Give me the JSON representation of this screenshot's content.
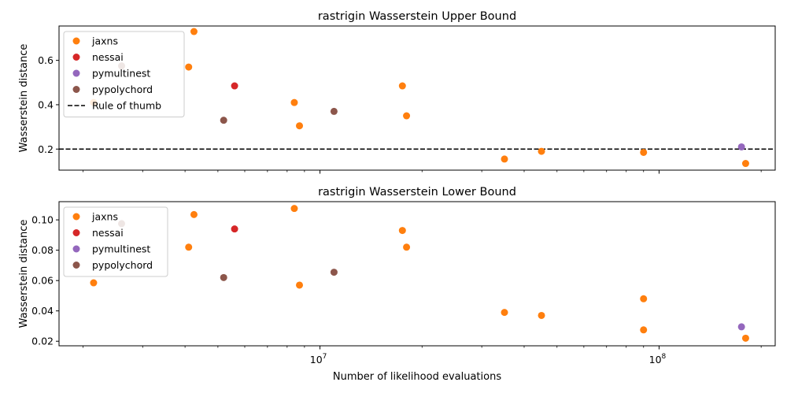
{
  "figure": {
    "xlabel": "Number of likelihood evaluations",
    "xscale": "log",
    "xlim": [
      1700000.0,
      220000000.0
    ],
    "major_ticks": [
      {
        "value": 10000000.0,
        "base": "10",
        "exp": "7"
      },
      {
        "value": 100000000.0,
        "base": "10",
        "exp": "8"
      }
    ],
    "colors": {
      "jaxns": "#ff7f0e",
      "nessai": "#d62728",
      "pymultinest": "#9467bd",
      "pypolychord": "#8c564b",
      "rule": "#000000"
    }
  },
  "chart_data": [
    {
      "type": "scatter",
      "title": "rastrigin Wasserstein Upper Bound",
      "ylabel": "Wasserstein distance",
      "ylim": [
        0.105,
        0.755
      ],
      "yticks": [
        0.2,
        0.4,
        0.6
      ],
      "ytick_labels": [
        "0.2",
        "0.4",
        "0.6"
      ],
      "grid": false,
      "legend_position": "upper-left",
      "reference_line": {
        "label": "Rule of thumb",
        "y": 0.2,
        "style": "dashed"
      },
      "series": [
        {
          "name": "jaxns",
          "color": "#ff7f0e",
          "points": [
            [
              2150000.0,
              0.41
            ],
            [
              4100000.0,
              0.57
            ],
            [
              4250000.0,
              0.73
            ],
            [
              8400000.0,
              0.41
            ],
            [
              8700000.0,
              0.305
            ],
            [
              17500000.0,
              0.485
            ],
            [
              18000000.0,
              0.35
            ],
            [
              35000000.0,
              0.155
            ],
            [
              45000000.0,
              0.19
            ],
            [
              90000000.0,
              0.185
            ],
            [
              180000000.0,
              0.135
            ]
          ]
        },
        {
          "name": "nessai",
          "color": "#d62728",
          "points": [
            [
              5600000.0,
              0.485
            ]
          ]
        },
        {
          "name": "pymultinest",
          "color": "#9467bd",
          "points": [
            [
              175000000.0,
              0.21
            ]
          ]
        },
        {
          "name": "pypolychord",
          "color": "#8c564b",
          "points": [
            [
              2600000.0,
              0.575
            ],
            [
              5200000.0,
              0.33
            ],
            [
              11000000.0,
              0.37
            ]
          ]
        }
      ]
    },
    {
      "type": "scatter",
      "title": "rastrigin Wasserstein Lower Bound",
      "ylabel": "Wasserstein distance",
      "ylim": [
        0.017,
        0.112
      ],
      "yticks": [
        0.02,
        0.04,
        0.06,
        0.08,
        0.1
      ],
      "ytick_labels": [
        "0.02",
        "0.04",
        "0.06",
        "0.08",
        "0.10"
      ],
      "grid": false,
      "legend_position": "upper-left",
      "series": [
        {
          "name": "jaxns",
          "color": "#ff7f0e",
          "points": [
            [
              2150000.0,
              0.0585
            ],
            [
              4100000.0,
              0.082
            ],
            [
              4250000.0,
              0.1035
            ],
            [
              8400000.0,
              0.1075
            ],
            [
              8700000.0,
              0.057
            ],
            [
              17500000.0,
              0.093
            ],
            [
              18000000.0,
              0.082
            ],
            [
              35000000.0,
              0.039
            ],
            [
              45000000.0,
              0.037
            ],
            [
              90000000.0,
              0.048
            ],
            [
              90000000.0,
              0.0275
            ],
            [
              180000000.0,
              0.022
            ]
          ]
        },
        {
          "name": "nessai",
          "color": "#d62728",
          "points": [
            [
              5600000.0,
              0.094
            ]
          ]
        },
        {
          "name": "pymultinest",
          "color": "#9467bd",
          "points": [
            [
              175000000.0,
              0.0295
            ]
          ]
        },
        {
          "name": "pypolychord",
          "color": "#8c564b",
          "points": [
            [
              2600000.0,
              0.0975
            ],
            [
              5200000.0,
              0.062
            ],
            [
              11000000.0,
              0.0655
            ]
          ]
        }
      ]
    }
  ]
}
